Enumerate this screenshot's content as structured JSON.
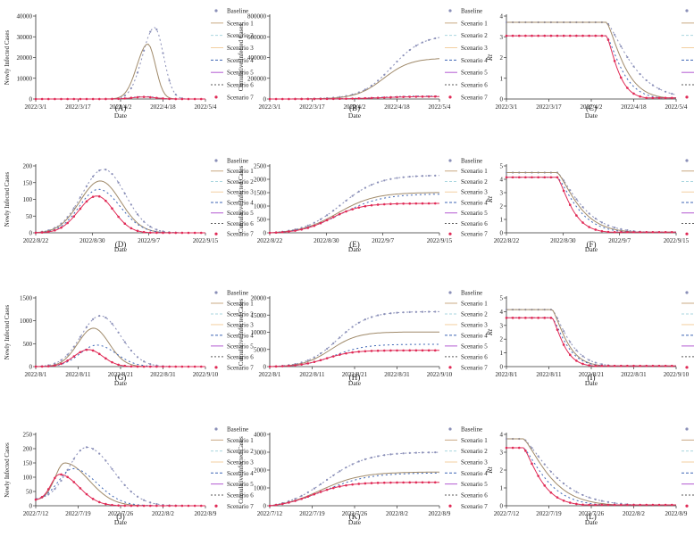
{
  "legend_labels": [
    "Baseline",
    "Scenario 1",
    "Scenario 2",
    "Scenario 3",
    "Scenario 4",
    "Scenario 5",
    "Scenario 6",
    "Scenario 7"
  ],
  "colors": {
    "baseline": "#8a8fb8",
    "s1": "#c9a882",
    "s2": "#a9d6df",
    "s3": "#f3cfa0",
    "s4": "#3f66b5",
    "s5": "#b35ad1",
    "s6": "#5a5a5a",
    "s7": "#e02a56",
    "s1_line": "#a08a6a",
    "axis": "#333333"
  },
  "chart_data": [
    {
      "panel": "(A)",
      "type": "line",
      "ylabel": "Newly Infected Cases",
      "xlabel": "Date",
      "ylim": [
        0,
        40000
      ],
      "yticks": [
        0,
        10000,
        20000,
        30000,
        40000
      ],
      "xticks": [
        "2022/3/1",
        "2022/3/17",
        "2022/4/2",
        "2022/4/18",
        "2022/5/4"
      ],
      "series": [
        {
          "name": "Baseline",
          "peak_x": 0.7,
          "peak": 34500,
          "w1": 0.1,
          "w2": 0.075
        },
        {
          "name": "Scenario 1",
          "peak_x": 0.66,
          "peak": 26500,
          "w1": 0.09,
          "w2": 0.065
        },
        {
          "name": "Scenario 4",
          "peak_x": 0.64,
          "peak": 1200,
          "w1": 0.1,
          "w2": 0.09
        },
        {
          "name": "Scenario 7",
          "peak_x": 0.64,
          "peak": 1000,
          "w1": 0.1,
          "w2": 0.09
        }
      ]
    },
    {
      "panel": "(B)",
      "type": "line",
      "ylabel": "Cumulative Infected Cases",
      "xlabel": "Date",
      "ylim": [
        0,
        800000
      ],
      "yticks": [
        0,
        200000,
        400000,
        600000,
        800000
      ],
      "xticks": [
        "2022/3/1",
        "2022/3/17",
        "2022/4/2",
        "2022/4/18",
        "2022/5/4"
      ],
      "series": [
        {
          "name": "Baseline",
          "final": 620000,
          "mid": 0.72,
          "k": 0.09
        },
        {
          "name": "Scenario 1",
          "final": 395000,
          "mid": 0.67,
          "k": 0.08
        },
        {
          "name": "Scenario 4",
          "final": 30000,
          "mid": 0.64,
          "k": 0.1
        },
        {
          "name": "Scenario 7",
          "final": 25000,
          "mid": 0.65,
          "k": 0.1
        }
      ]
    },
    {
      "panel": "(C)",
      "type": "line",
      "ylabel": "Rt",
      "xlabel": "Date",
      "ylim": [
        0,
        4
      ],
      "yticks": [
        0,
        1,
        2,
        3,
        4
      ],
      "xticks": [
        "2022/3/1",
        "2022/3/17",
        "2022/4/2",
        "2022/4/18",
        "2022/5/4"
      ],
      "series": [
        {
          "name": "Baseline",
          "flat": 3.7,
          "drop_x": 0.59,
          "tau": 0.18
        },
        {
          "name": "Scenario 1",
          "flat": 3.7,
          "drop_x": 0.59,
          "tau": 0.12
        },
        {
          "name": "Scenario 4",
          "flat": 3.05,
          "drop_x": 0.59,
          "tau": 0.11
        },
        {
          "name": "Scenario 7",
          "flat": 3.05,
          "drop_x": 0.59,
          "tau": 0.08
        }
      ]
    },
    {
      "panel": "(D)",
      "type": "line",
      "ylabel": "Newly Infected Cases",
      "xlabel": "Date",
      "ylim": [
        0,
        200
      ],
      "yticks": [
        0,
        50,
        100,
        150,
        200
      ],
      "xticks": [
        "2022/8/22",
        "2022/8/30",
        "2022/9/7",
        "2022/9/15"
      ],
      "series": [
        {
          "name": "Baseline",
          "peak_x": 0.4,
          "peak": 190,
          "w1": 0.18,
          "w2": 0.18
        },
        {
          "name": "Scenario 1",
          "peak_x": 0.38,
          "peak": 155,
          "w1": 0.17,
          "w2": 0.17
        },
        {
          "name": "Scenario 4",
          "peak_x": 0.37,
          "peak": 130,
          "w1": 0.16,
          "w2": 0.18
        },
        {
          "name": "Scenario 7",
          "peak_x": 0.36,
          "peak": 110,
          "w1": 0.15,
          "w2": 0.14
        }
      ]
    },
    {
      "panel": "(E)",
      "type": "line",
      "ylabel": "Cumulative Infected Cases",
      "xlabel": "Date",
      "ylim": [
        0,
        2500
      ],
      "yticks": [
        0,
        500,
        1000,
        1500,
        2000,
        2500
      ],
      "xticks": [
        "2022/8/22",
        "2022/8/30",
        "2022/9/7",
        "2022/9/15"
      ],
      "series": [
        {
          "name": "Baseline",
          "final": 2200,
          "mid": 0.42,
          "k": 0.11
        },
        {
          "name": "Scenario 1",
          "final": 1550,
          "mid": 0.4,
          "k": 0.11
        },
        {
          "name": "Scenario 4",
          "final": 1500,
          "mid": 0.42,
          "k": 0.12
        },
        {
          "name": "Scenario 7",
          "final": 1120,
          "mid": 0.36,
          "k": 0.09
        }
      ]
    },
    {
      "panel": "(F)",
      "type": "line",
      "ylabel": "Rt",
      "xlabel": "Date",
      "ylim": [
        0,
        5
      ],
      "yticks": [
        0,
        1,
        2,
        3,
        4,
        5
      ],
      "xticks": [
        "2022/8/22",
        "2022/8/30",
        "2022/9/7",
        "2022/9/15"
      ],
      "series": [
        {
          "name": "Baseline",
          "flat": 4.5,
          "drop_x": 0.3,
          "tau": 0.17
        },
        {
          "name": "Scenario 1",
          "flat": 4.5,
          "drop_x": 0.3,
          "tau": 0.15
        },
        {
          "name": "Scenario 4",
          "flat": 4.15,
          "drop_x": 0.3,
          "tau": 0.14
        },
        {
          "name": "Scenario 7",
          "flat": 4.15,
          "drop_x": 0.3,
          "tau": 0.1
        }
      ]
    },
    {
      "panel": "(G)",
      "type": "line",
      "ylabel": "Newly Infected Cases",
      "xlabel": "Date",
      "ylim": [
        0,
        1500
      ],
      "yticks": [
        0,
        500,
        1000,
        1500
      ],
      "xticks": [
        "2022/8/1",
        "2022/8/11",
        "2022/8/21",
        "2022/8/31",
        "2022/9/10"
      ],
      "series": [
        {
          "name": "Baseline",
          "peak_x": 0.38,
          "peak": 1110,
          "w1": 0.16,
          "w2": 0.17
        },
        {
          "name": "Scenario 1",
          "peak_x": 0.34,
          "peak": 840,
          "w1": 0.13,
          "w2": 0.13
        },
        {
          "name": "Scenario 4",
          "peak_x": 0.36,
          "peak": 470,
          "w1": 0.14,
          "w2": 0.16
        },
        {
          "name": "Scenario 7",
          "peak_x": 0.31,
          "peak": 370,
          "w1": 0.12,
          "w2": 0.12
        }
      ]
    },
    {
      "panel": "(H)",
      "type": "line",
      "ylabel": "Cumulative Infected Cases",
      "xlabel": "Date",
      "ylim": [
        0,
        20000
      ],
      "yticks": [
        0,
        5000,
        10000,
        15000,
        20000
      ],
      "xticks": [
        "2022/8/1",
        "2022/8/11",
        "2022/8/21",
        "2022/8/31",
        "2022/9/10"
      ],
      "series": [
        {
          "name": "Baseline",
          "final": 16200,
          "mid": 0.4,
          "k": 0.09
        },
        {
          "name": "Scenario 1",
          "final": 10200,
          "mid": 0.36,
          "k": 0.08
        },
        {
          "name": "Scenario 4",
          "final": 6600,
          "mid": 0.38,
          "k": 0.09
        },
        {
          "name": "Scenario 7",
          "final": 4800,
          "mid": 0.33,
          "k": 0.08
        }
      ]
    },
    {
      "panel": "(I)",
      "type": "line",
      "ylabel": "Rt",
      "xlabel": "Date",
      "ylim": [
        0,
        5
      ],
      "yticks": [
        0,
        1,
        2,
        3,
        4,
        5
      ],
      "xticks": [
        "2022/8/1",
        "2022/8/11",
        "2022/8/21",
        "2022/8/31",
        "2022/9/10"
      ],
      "series": [
        {
          "name": "Baseline",
          "flat": 4.15,
          "drop_x": 0.27,
          "tau": 0.12
        },
        {
          "name": "Scenario 1",
          "flat": 4.15,
          "drop_x": 0.27,
          "tau": 0.1
        },
        {
          "name": "Scenario 4",
          "flat": 3.55,
          "drop_x": 0.27,
          "tau": 0.1
        },
        {
          "name": "Scenario 7",
          "flat": 3.55,
          "drop_x": 0.27,
          "tau": 0.08
        }
      ]
    },
    {
      "panel": "(J)",
      "type": "line",
      "ylabel": "Newly Infected Cases",
      "xlabel": "Date",
      "ylim": [
        0,
        250
      ],
      "yticks": [
        0,
        50,
        100,
        150,
        200,
        250
      ],
      "xticks": [
        "2022/7/12",
        "2022/7/19",
        "2022/7/26",
        "2022/8/2",
        "2022/8/9"
      ],
      "series": [
        {
          "name": "Baseline",
          "peak_x": 0.3,
          "peak": 205,
          "w1": 0.15,
          "w2": 0.22,
          "start": 20
        },
        {
          "name": "Scenario 1",
          "peak_x": 0.17,
          "peak": 150,
          "w1": 0.08,
          "w2": 0.2,
          "start": 20
        },
        {
          "name": "Scenario 4",
          "peak_x": 0.22,
          "peak": 130,
          "w1": 0.12,
          "w2": 0.2,
          "start": 20
        },
        {
          "name": "Scenario 7",
          "peak_x": 0.14,
          "peak": 110,
          "w1": 0.07,
          "w2": 0.16,
          "start": 20
        }
      ]
    },
    {
      "panel": "(K)",
      "type": "line",
      "ylabel": "Cumulative Infected Cases",
      "xlabel": "Date",
      "ylim": [
        0,
        4000
      ],
      "yticks": [
        0,
        1000,
        2000,
        3000,
        4000
      ],
      "xticks": [
        "2022/7/12",
        "2022/7/19",
        "2022/7/26",
        "2022/8/2",
        "2022/8/9"
      ],
      "series": [
        {
          "name": "Baseline",
          "final": 3200,
          "mid": 0.33,
          "k": 0.12
        },
        {
          "name": "Scenario 1",
          "final": 2050,
          "mid": 0.3,
          "k": 0.12
        },
        {
          "name": "Scenario 4",
          "final": 2000,
          "mid": 0.32,
          "k": 0.13
        },
        {
          "name": "Scenario 7",
          "final": 1420,
          "mid": 0.25,
          "k": 0.1
        }
      ]
    },
    {
      "panel": "(L)",
      "type": "line",
      "ylabel": "Rt",
      "xlabel": "Date",
      "ylim": [
        0,
        4
      ],
      "yticks": [
        0,
        1,
        2,
        3,
        4
      ],
      "xticks": [
        "2022/7/12",
        "2022/7/19",
        "2022/7/26",
        "2022/8/2",
        "2022/8/9"
      ],
      "series": [
        {
          "name": "Baseline",
          "flat": 3.75,
          "drop_x": 0.1,
          "tau": 0.22
        },
        {
          "name": "Scenario 1",
          "flat": 3.75,
          "drop_x": 0.1,
          "tau": 0.18
        },
        {
          "name": "Scenario 4",
          "flat": 3.25,
          "drop_x": 0.1,
          "tau": 0.16
        },
        {
          "name": "Scenario 7",
          "flat": 3.25,
          "drop_x": 0.1,
          "tau": 0.12
        }
      ]
    }
  ]
}
